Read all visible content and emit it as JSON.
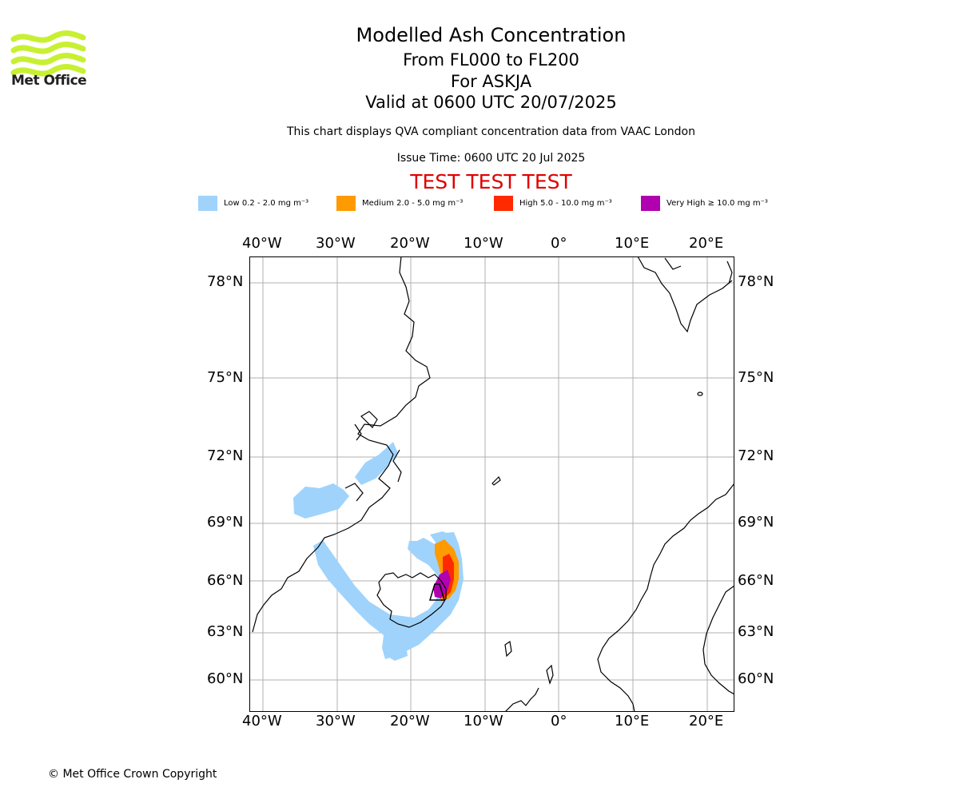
{
  "logo": {
    "text": "Met Office",
    "icon": "met-office-wave-logo",
    "color": "#c8f032"
  },
  "header": {
    "title": "Modelled Ash Concentration",
    "levels": "From FL000 to FL200",
    "volcano": "For ASKJA",
    "valid": "Valid at 0600 UTC 20/07/2025",
    "description": "This chart displays QVA compliant concentration data from VAAC London",
    "issue_time": "Issue Time: 0600 UTC 20 Jul 2025",
    "test_banner": "TEST TEST TEST",
    "test_color": "#e00000"
  },
  "legend": [
    {
      "label": "Low 0.2 - 2.0 mg m⁻³",
      "color": "#9fd3fb"
    },
    {
      "label": "Medium 2.0 - 5.0 mg m⁻³",
      "color": "#ff9a00"
    },
    {
      "label": "High 5.0 - 10.0 mg m⁻³",
      "color": "#ff2a00"
    },
    {
      "label": "Very High  ≥  10.0 mg m⁻³",
      "color": "#b000b0"
    }
  ],
  "map": {
    "lon_ticks": [
      "40°W",
      "30°W",
      "20°W",
      "10°W",
      "0°",
      "10°E",
      "20°E"
    ],
    "lat_ticks": [
      "78°N",
      "75°N",
      "72°N",
      "69°N",
      "66°N",
      "63°N",
      "60°N"
    ],
    "grid": true
  },
  "footer": {
    "copyright": "© Met Office Crown Copyright"
  }
}
